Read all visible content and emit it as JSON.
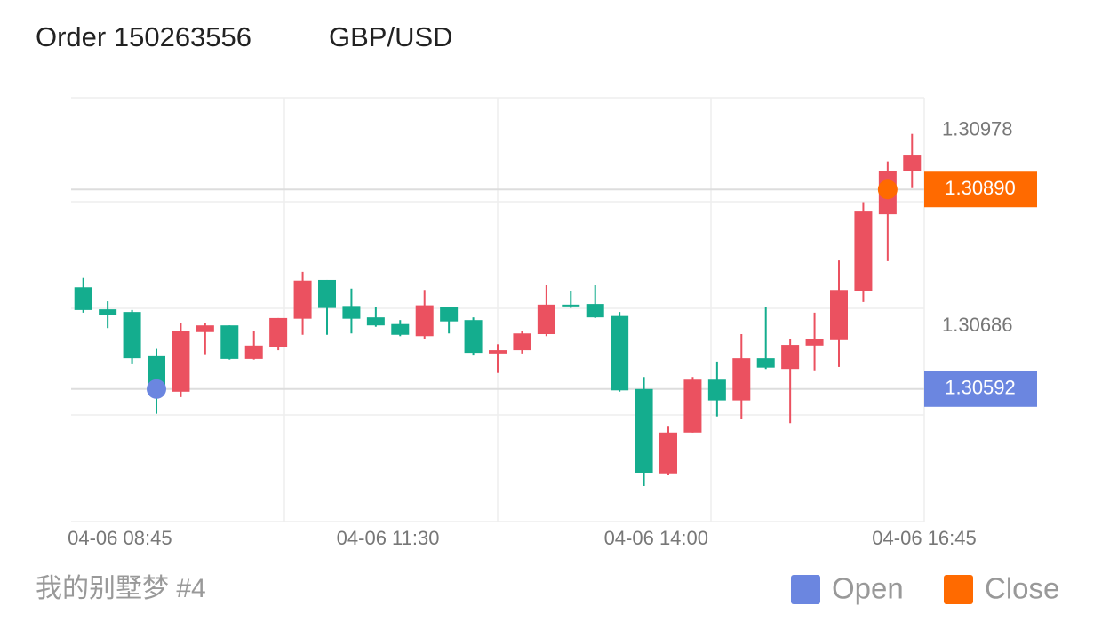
{
  "chart_data": {
    "type": "candlestick",
    "title": "Order 150263556",
    "subtitle": "GBP/USD",
    "caption": "我的别墅梦 #4",
    "categories": [
      null,
      "04-06 08:45",
      null,
      null,
      null,
      null,
      null,
      null,
      null,
      null,
      null,
      null,
      "04-06 11:30",
      null,
      null,
      null,
      null,
      null,
      null,
      null,
      null,
      null,
      null,
      "04-06 14:00",
      null,
      null,
      null,
      null,
      null,
      null,
      null,
      null,
      null,
      null,
      "04-06 16:45"
    ],
    "open": [
      1.30744,
      1.30711,
      1.30707,
      1.30641,
      1.30588,
      1.30677,
      1.30687,
      1.30637,
      1.30655,
      1.30697,
      1.30755,
      1.30716,
      1.30699,
      1.30689,
      1.30671,
      1.30715,
      1.30695,
      1.30645,
      1.3065,
      1.30674,
      1.30718,
      1.30719,
      1.30701,
      1.30592,
      1.30466,
      1.30527,
      1.30606,
      1.30575,
      1.30638,
      1.30622,
      1.30657,
      1.30665,
      1.30739,
      1.30853,
      1.30917
    ],
    "high": [
      1.30758,
      1.30723,
      1.3071,
      1.30652,
      1.3069,
      1.3069,
      1.30687,
      1.30679,
      1.30698,
      1.30767,
      1.30755,
      1.30742,
      1.30715,
      1.30695,
      1.3074,
      1.30715,
      1.30699,
      1.30659,
      1.30678,
      1.30747,
      1.30739,
      1.30747,
      1.30707,
      1.3061,
      1.30537,
      1.3061,
      1.30633,
      1.30674,
      1.30715,
      1.30666,
      1.30706,
      1.30784,
      1.30871,
      1.30932,
      1.30973
    ],
    "low": [
      1.30706,
      1.30683,
      1.30629,
      1.30555,
      1.3058,
      1.30644,
      1.30636,
      1.30636,
      1.3065,
      1.30673,
      1.30673,
      1.30675,
      1.30685,
      1.30671,
      1.30667,
      1.30675,
      1.30642,
      1.30616,
      1.30645,
      1.30671,
      1.30713,
      1.30698,
      1.30588,
      1.30447,
      1.30463,
      1.30527,
      1.30551,
      1.30547,
      1.30622,
      1.30541,
      1.3062,
      1.30625,
      1.30722,
      1.30783,
      1.30892
    ],
    "close": [
      1.3071,
      1.30703,
      1.30638,
      1.30593,
      1.30678,
      1.30687,
      1.30637,
      1.30657,
      1.30698,
      1.30754,
      1.30713,
      1.30697,
      1.30687,
      1.30673,
      1.30717,
      1.30693,
      1.30646,
      1.3065,
      1.30675,
      1.30718,
      1.30716,
      1.30699,
      1.3059,
      1.30467,
      1.30527,
      1.30606,
      1.30575,
      1.30638,
      1.30624,
      1.30658,
      1.30667,
      1.3074,
      1.30857,
      1.30918,
      1.30942
    ],
    "up_color": "#eb5160",
    "down_color": "#14ad8e",
    "ylim": [
      1.30394,
      1.31027
    ],
    "yticks": [
      1.30686,
      1.30978
    ],
    "markers": [
      {
        "name": "Open",
        "color": "#6b86e0",
        "index": 3,
        "price": {
          "value": 1.30592,
          "label": "1.30592"
        }
      },
      {
        "name": "Close",
        "color": "#ff6a00",
        "index": 33,
        "price": {
          "value": 1.3089,
          "label": "1.30890"
        }
      }
    ]
  }
}
